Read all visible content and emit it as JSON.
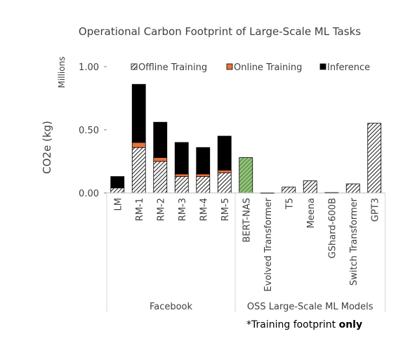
{
  "chart_data": {
    "type": "bar",
    "stacked": true,
    "title": "Operational Carbon Footprint of Large-Scale ML Tasks",
    "ylabel": "CO2e (kg)",
    "y_unit_label": "Millions",
    "ylim": [
      0,
      1.0
    ],
    "yticks": [
      "0.00",
      "0.50",
      "1.00"
    ],
    "ytick_values": [
      0,
      0.5,
      1.0
    ],
    "legend_position": "top",
    "gridlines": false,
    "categories": [
      "LM",
      "RM-1",
      "RM-2",
      "RM-3",
      "RM-4",
      "RM-5",
      "BERT-NAS",
      "Evolved Transformer",
      "T5",
      "Meena",
      "GShard-600B",
      "Switch Transformer",
      "GPT3"
    ],
    "series": [
      {
        "name": "Offline Training",
        "color": "#1a1a1a",
        "pattern": "diagonal-hatch",
        "values": [
          0.04,
          0.36,
          0.25,
          0.13,
          0.13,
          0.16,
          0.28,
          0.002,
          0.046,
          0.096,
          0.004,
          0.072,
          0.552
        ]
      },
      {
        "name": "Online Training",
        "color": "#e8733a",
        "values": [
          0,
          0.04,
          0.03,
          0.02,
          0.02,
          0.02,
          0,
          0,
          0,
          0,
          0,
          0,
          0
        ]
      },
      {
        "name": "Inference",
        "color": "#000000",
        "values": [
          0.09,
          0.46,
          0.28,
          0.25,
          0.21,
          0.27,
          0,
          0,
          0,
          0,
          0,
          0,
          0
        ]
      }
    ],
    "highlighted_category": {
      "name": "BERT-NAS",
      "color": "#93c47d"
    },
    "groups": [
      {
        "label": "Facebook",
        "categories": [
          "LM",
          "RM-1",
          "RM-2",
          "RM-3",
          "RM-4",
          "RM-5"
        ]
      },
      {
        "label": "OSS Large-Scale ML Models",
        "categories": [
          "BERT-NAS",
          "Evolved Transformer",
          "T5",
          "Meena",
          "GShard-600B",
          "Switch Transformer",
          "GPT3"
        ]
      }
    ],
    "footnote_prefix": "*Training footprint ",
    "footnote_bold": "only"
  }
}
